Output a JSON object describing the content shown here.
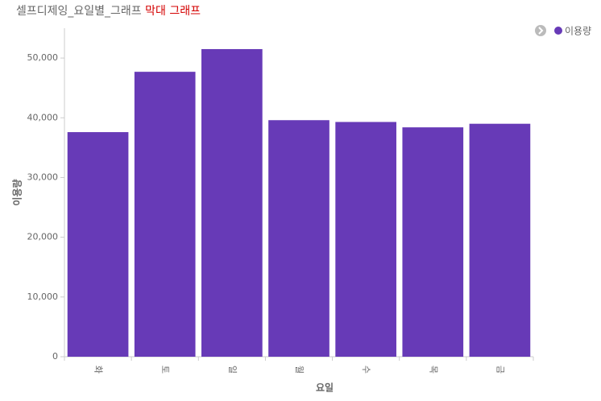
{
  "chart_data": {
    "type": "bar",
    "title": "셀프디제잉_요일별_그래프",
    "title_highlight": "막대 그래프",
    "x_label": "요일",
    "y_label": "이용량",
    "categories": [
      "화",
      "토",
      "일",
      "월",
      "수",
      "목",
      "금"
    ],
    "series": [
      {
        "name": "이용량",
        "color": "#673ab7",
        "values": [
          37600,
          47700,
          51500,
          39600,
          39300,
          38400,
          39000
        ]
      }
    ],
    "ylim": [
      0,
      55000
    ],
    "yticks": [
      0,
      {
        "value": 10000,
        "label": "10,000"
      },
      {
        "value": 20000,
        "label": "20,000"
      },
      {
        "value": 30000,
        "label": "30,000"
      },
      {
        "value": 40000,
        "label": "40,000"
      },
      {
        "value": 50000,
        "label": "50,000"
      }
    ],
    "legend": "top-right"
  }
}
